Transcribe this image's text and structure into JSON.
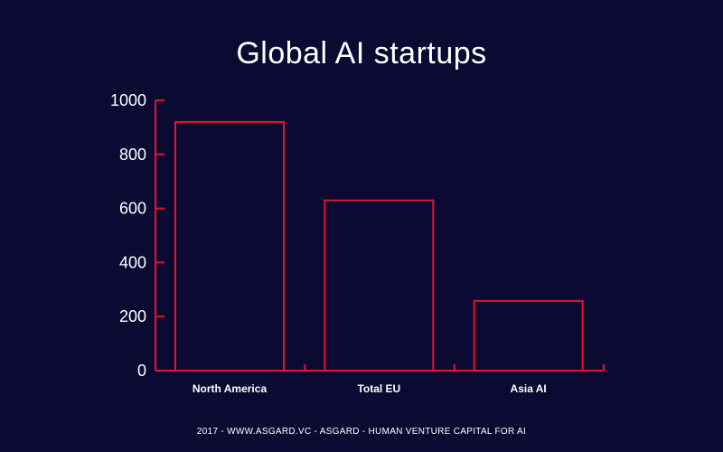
{
  "title": "Global AI startups",
  "footer": "2017 - WWW.ASGARD.VC - ASGARD - HUMAN VENTURE CAPITAL FOR AI",
  "colors": {
    "background": "#0a0a33",
    "bar_stroke": "#e8132c",
    "axis": "#e8132c",
    "text": "#ffffff"
  },
  "chart_data": {
    "type": "bar",
    "title": "Global AI startups",
    "categories": [
      "North America",
      "Total EU",
      "Asia AI"
    ],
    "values": [
      920,
      630,
      258
    ],
    "ylim": [
      0,
      1000
    ],
    "yticks": [
      0,
      200,
      400,
      600,
      800,
      1000
    ],
    "xlabel": "",
    "ylabel": "",
    "grid": false,
    "legend": "none",
    "bar_style": "outline"
  }
}
